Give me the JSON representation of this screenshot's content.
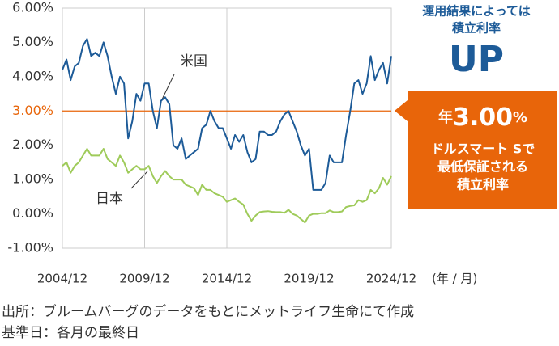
{
  "chart_data": {
    "type": "line",
    "x": [
      "2004/12",
      "2005/03",
      "2005/06",
      "2005/09",
      "2005/12",
      "2006/03",
      "2006/06",
      "2006/09",
      "2006/12",
      "2007/03",
      "2007/06",
      "2007/09",
      "2007/12",
      "2008/03",
      "2008/06",
      "2008/09",
      "2008/12",
      "2009/03",
      "2009/06",
      "2009/09",
      "2009/12",
      "2010/03",
      "2010/06",
      "2010/09",
      "2010/12",
      "2011/03",
      "2011/06",
      "2011/09",
      "2011/12",
      "2012/03",
      "2012/06",
      "2012/09",
      "2012/12",
      "2013/03",
      "2013/06",
      "2013/09",
      "2013/12",
      "2014/03",
      "2014/06",
      "2014/09",
      "2014/12",
      "2015/03",
      "2015/06",
      "2015/09",
      "2015/12",
      "2016/03",
      "2016/06",
      "2016/09",
      "2016/12",
      "2017/03",
      "2017/06",
      "2017/09",
      "2017/12",
      "2018/03",
      "2018/06",
      "2018/09",
      "2018/12",
      "2019/03",
      "2019/06",
      "2019/09",
      "2019/12",
      "2020/03",
      "2020/06",
      "2020/09",
      "2020/12",
      "2021/03",
      "2021/06",
      "2021/09",
      "2021/12",
      "2022/03",
      "2022/06",
      "2022/09",
      "2022/12",
      "2023/03",
      "2023/06",
      "2023/09",
      "2023/12",
      "2024/03",
      "2024/06",
      "2024/09",
      "2024/12"
    ],
    "series": [
      {
        "name": "米国",
        "color": "#1d5b98",
        "values": [
          4.2,
          4.5,
          3.9,
          4.3,
          4.4,
          4.9,
          5.1,
          4.6,
          4.7,
          4.6,
          5.0,
          4.6,
          4.0,
          3.5,
          4.0,
          3.8,
          2.2,
          2.7,
          3.5,
          3.3,
          3.8,
          3.8,
          3.0,
          2.5,
          3.3,
          3.4,
          3.2,
          2.0,
          1.9,
          2.2,
          1.6,
          1.7,
          1.8,
          1.9,
          2.5,
          2.6,
          3.0,
          2.7,
          2.5,
          2.5,
          2.2,
          1.9,
          2.3,
          2.1,
          2.3,
          1.8,
          1.5,
          1.6,
          2.4,
          2.4,
          2.3,
          2.3,
          2.4,
          2.7,
          2.9,
          3.0,
          2.7,
          2.4,
          2.0,
          1.7,
          1.9,
          0.7,
          0.7,
          0.7,
          0.9,
          1.7,
          1.5,
          1.5,
          1.5,
          2.3,
          3.0,
          3.8,
          3.9,
          3.5,
          3.8,
          4.6,
          3.9,
          4.2,
          4.4,
          3.8,
          4.6
        ]
      },
      {
        "name": "日本",
        "color": "#9fcb5a",
        "values": [
          1.4,
          1.5,
          1.2,
          1.4,
          1.5,
          1.7,
          1.9,
          1.7,
          1.7,
          1.7,
          1.9,
          1.6,
          1.5,
          1.4,
          1.7,
          1.5,
          1.2,
          1.3,
          1.4,
          1.3,
          1.3,
          1.4,
          1.1,
          0.9,
          1.1,
          1.25,
          1.1,
          1.0,
          1.0,
          1.0,
          0.85,
          0.8,
          0.75,
          0.55,
          0.85,
          0.7,
          0.7,
          0.6,
          0.55,
          0.5,
          0.35,
          0.4,
          0.45,
          0.35,
          0.27,
          0.0,
          -0.2,
          -0.05,
          0.05,
          0.07,
          0.08,
          0.06,
          0.05,
          0.05,
          0.03,
          0.12,
          0.0,
          -0.05,
          -0.15,
          -0.25,
          -0.05,
          0.0,
          0.0,
          0.02,
          0.02,
          0.1,
          0.05,
          0.05,
          0.07,
          0.2,
          0.23,
          0.25,
          0.4,
          0.35,
          0.4,
          0.7,
          0.6,
          0.75,
          1.05,
          0.85,
          1.1
        ]
      }
    ],
    "ylim": [
      -1,
      6
    ],
    "yticks": [
      {
        "value": 6,
        "label": "6.00%"
      },
      {
        "value": 5,
        "label": "5.00%"
      },
      {
        "value": 4,
        "label": "4.00%"
      },
      {
        "value": 3,
        "label": "3.00%"
      },
      {
        "value": 2,
        "label": "2.00%"
      },
      {
        "value": 1,
        "label": "1.00%"
      },
      {
        "value": 0,
        "label": "0.00%"
      },
      {
        "value": -1,
        "label": "-1.00%"
      }
    ],
    "xticks": [
      "2004/12",
      "2009/12",
      "2014/12",
      "2019/12",
      "2024/12"
    ],
    "x_unit": "(年 / 月)",
    "reference_line": {
      "value": 3,
      "color": "#e8650a"
    },
    "callout": {
      "lines": [
        "運用結果によっては",
        "積立利率"
      ],
      "big": "UP"
    },
    "box": {
      "prefix": "年",
      "rate": "3.00",
      "suffix": "%",
      "lines": [
        "ドルスマート Sで",
        "最低保証される",
        "積立利率"
      ]
    },
    "notes": [
      "出所：ブルームバーグのデータをもとにメットライフ生命にて作成",
      "基準日：各月の最終日"
    ]
  }
}
